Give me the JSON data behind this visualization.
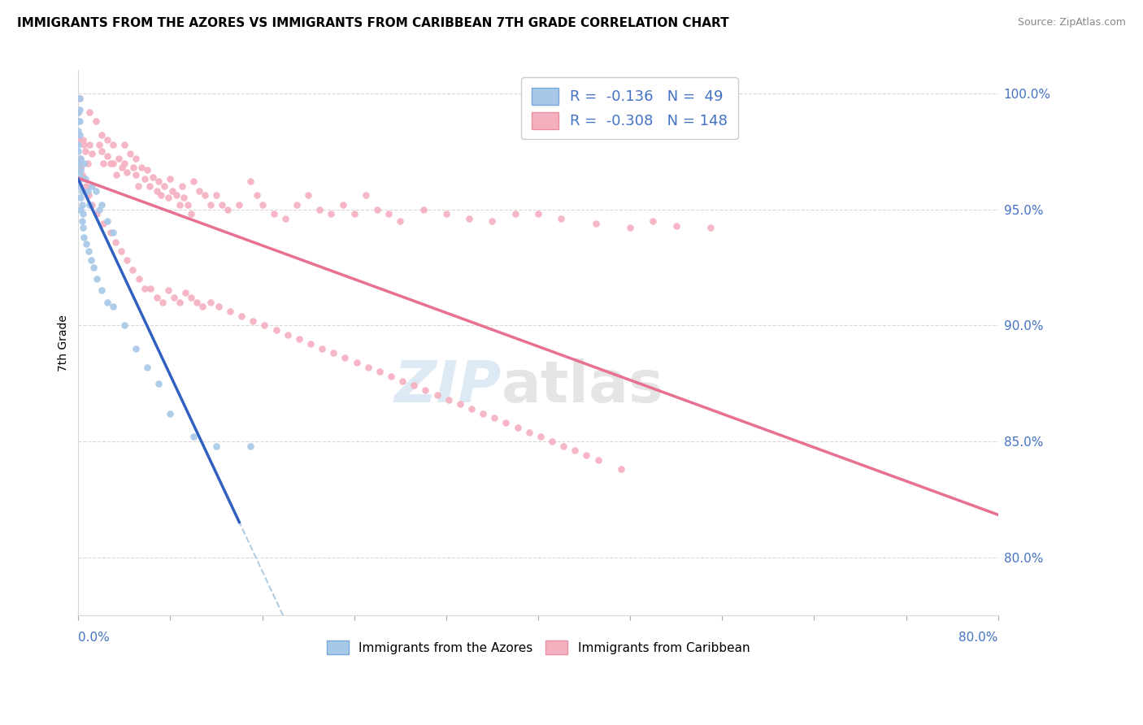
{
  "title": "IMMIGRANTS FROM THE AZORES VS IMMIGRANTS FROM CARIBBEAN 7TH GRADE CORRELATION CHART",
  "source": "Source: ZipAtlas.com",
  "ylabel": "7th Grade",
  "right_ytick_vals": [
    0.8,
    0.85,
    0.9,
    0.95,
    1.0
  ],
  "right_ytick_labels": [
    "80.0%",
    "85.0%",
    "90.0%",
    "95.0%",
    "100.0%"
  ],
  "azores_color": "#a8c8e8",
  "caribbean_color": "#f5b0c0",
  "azores_line_color": "#3060c0",
  "caribbean_line_color": "#e87090",
  "dashed_color": "#b0cce0",
  "blue_text_color": "#4472c4",
  "grid_color": "#d8d8d8",
  "xlim": [
    0.0,
    0.8
  ],
  "ylim": [
    0.775,
    1.01
  ],
  "legend_label_azores": "Immigrants from the Azores",
  "legend_label_caribbean": "Immigrants from Caribbean",
  "legend_r_azores": "-0.136",
  "legend_n_azores": "49",
  "legend_r_caribbean": "-0.308",
  "legend_n_caribbean": "148",
  "azores_pts_x": [
    0.0,
    0.0,
    0.0,
    0.0,
    0.001,
    0.001,
    0.001,
    0.001,
    0.002,
    0.002,
    0.002,
    0.003,
    0.003,
    0.004,
    0.005,
    0.006,
    0.008,
    0.01,
    0.012,
    0.015,
    0.018,
    0.02,
    0.025,
    0.03,
    0.0,
    0.0,
    0.001,
    0.001,
    0.002,
    0.002,
    0.003,
    0.004,
    0.005,
    0.007,
    0.009,
    0.011,
    0.013,
    0.016,
    0.02,
    0.025,
    0.03,
    0.04,
    0.05,
    0.06,
    0.07,
    0.08,
    0.1,
    0.12,
    0.15
  ],
  "azores_pts_y": [
    0.992,
    0.988,
    0.984,
    0.978,
    0.998,
    0.993,
    0.988,
    0.982,
    0.972,
    0.967,
    0.963,
    0.958,
    0.952,
    0.948,
    0.97,
    0.963,
    0.958,
    0.952,
    0.96,
    0.958,
    0.95,
    0.952,
    0.945,
    0.94,
    0.975,
    0.97,
    0.965,
    0.96,
    0.955,
    0.95,
    0.945,
    0.942,
    0.938,
    0.935,
    0.932,
    0.928,
    0.925,
    0.92,
    0.915,
    0.91,
    0.908,
    0.9,
    0.89,
    0.882,
    0.875,
    0.862,
    0.852,
    0.848,
    0.848
  ],
  "caribbean_pts_x": [
    0.0,
    0.0,
    0.0,
    0.001,
    0.001,
    0.002,
    0.003,
    0.004,
    0.005,
    0.006,
    0.008,
    0.01,
    0.01,
    0.012,
    0.015,
    0.018,
    0.02,
    0.02,
    0.022,
    0.025,
    0.025,
    0.028,
    0.03,
    0.03,
    0.033,
    0.035,
    0.038,
    0.04,
    0.04,
    0.042,
    0.045,
    0.048,
    0.05,
    0.05,
    0.052,
    0.055,
    0.058,
    0.06,
    0.062,
    0.065,
    0.068,
    0.07,
    0.072,
    0.075,
    0.078,
    0.08,
    0.082,
    0.085,
    0.088,
    0.09,
    0.092,
    0.095,
    0.098,
    0.1,
    0.105,
    0.11,
    0.115,
    0.12,
    0.125,
    0.13,
    0.14,
    0.15,
    0.155,
    0.16,
    0.17,
    0.18,
    0.19,
    0.2,
    0.21,
    0.22,
    0.23,
    0.24,
    0.25,
    0.26,
    0.27,
    0.28,
    0.3,
    0.32,
    0.34,
    0.36,
    0.38,
    0.4,
    0.42,
    0.45,
    0.48,
    0.5,
    0.52,
    0.55,
    0.002,
    0.004,
    0.007,
    0.009,
    0.012,
    0.016,
    0.022,
    0.028,
    0.032,
    0.037,
    0.042,
    0.047,
    0.053,
    0.058,
    0.063,
    0.068,
    0.073,
    0.078,
    0.083,
    0.088,
    0.093,
    0.098,
    0.103,
    0.108,
    0.115,
    0.122,
    0.132,
    0.142,
    0.152,
    0.162,
    0.172,
    0.182,
    0.192,
    0.202,
    0.212,
    0.222,
    0.232,
    0.242,
    0.252,
    0.262,
    0.272,
    0.282,
    0.292,
    0.302,
    0.312,
    0.322,
    0.332,
    0.342,
    0.352,
    0.362,
    0.372,
    0.382,
    0.392,
    0.402,
    0.412,
    0.422,
    0.432,
    0.442,
    0.452,
    0.472
  ],
  "caribbean_pts_y": [
    0.992,
    0.988,
    0.98,
    0.998,
    0.972,
    0.968,
    0.965,
    0.98,
    0.978,
    0.975,
    0.97,
    0.992,
    0.978,
    0.974,
    0.988,
    0.978,
    0.982,
    0.975,
    0.97,
    0.98,
    0.973,
    0.97,
    0.978,
    0.97,
    0.965,
    0.972,
    0.968,
    0.978,
    0.97,
    0.966,
    0.974,
    0.968,
    0.972,
    0.965,
    0.96,
    0.968,
    0.963,
    0.967,
    0.96,
    0.964,
    0.958,
    0.962,
    0.956,
    0.96,
    0.955,
    0.963,
    0.958,
    0.956,
    0.952,
    0.96,
    0.955,
    0.952,
    0.948,
    0.962,
    0.958,
    0.956,
    0.952,
    0.956,
    0.952,
    0.95,
    0.952,
    0.962,
    0.956,
    0.952,
    0.948,
    0.946,
    0.952,
    0.956,
    0.95,
    0.948,
    0.952,
    0.948,
    0.956,
    0.95,
    0.948,
    0.945,
    0.95,
    0.948,
    0.946,
    0.945,
    0.948,
    0.948,
    0.946,
    0.944,
    0.942,
    0.945,
    0.943,
    0.942,
    0.968,
    0.964,
    0.96,
    0.956,
    0.952,
    0.948,
    0.944,
    0.94,
    0.936,
    0.932,
    0.928,
    0.924,
    0.92,
    0.916,
    0.916,
    0.912,
    0.91,
    0.915,
    0.912,
    0.91,
    0.914,
    0.912,
    0.91,
    0.908,
    0.91,
    0.908,
    0.906,
    0.904,
    0.902,
    0.9,
    0.898,
    0.896,
    0.894,
    0.892,
    0.89,
    0.888,
    0.886,
    0.884,
    0.882,
    0.88,
    0.878,
    0.876,
    0.874,
    0.872,
    0.87,
    0.868,
    0.866,
    0.864,
    0.862,
    0.86,
    0.858,
    0.856,
    0.854,
    0.852,
    0.85,
    0.848,
    0.846,
    0.844,
    0.842,
    0.838
  ]
}
